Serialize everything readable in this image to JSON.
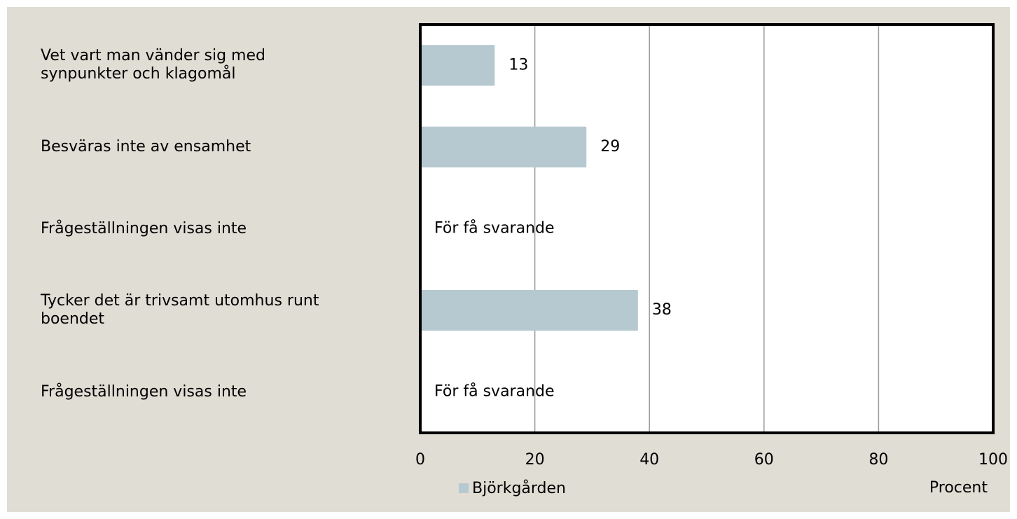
{
  "chart_data": {
    "type": "barh",
    "categories": [
      "Vet vart man vänder sig med\nsynpunkter och klagomål",
      "Besväras inte av ensamhet",
      "Frågeställningen visas inte",
      "Tycker det är trivsamt utomhus runt\nboendet",
      "Frågeställningen visas inte"
    ],
    "series": [
      {
        "name": "Björkgården",
        "color": "#b7c9d0",
        "values": [
          13,
          29,
          null,
          38,
          null
        ],
        "value_labels": [
          "13",
          "29",
          "För få svarande",
          "38",
          "För få svarande"
        ]
      }
    ],
    "xlabel": "Procent",
    "xlim": [
      0,
      100
    ],
    "xticks": [
      0,
      20,
      40,
      60,
      80,
      100
    ],
    "grid": true
  }
}
